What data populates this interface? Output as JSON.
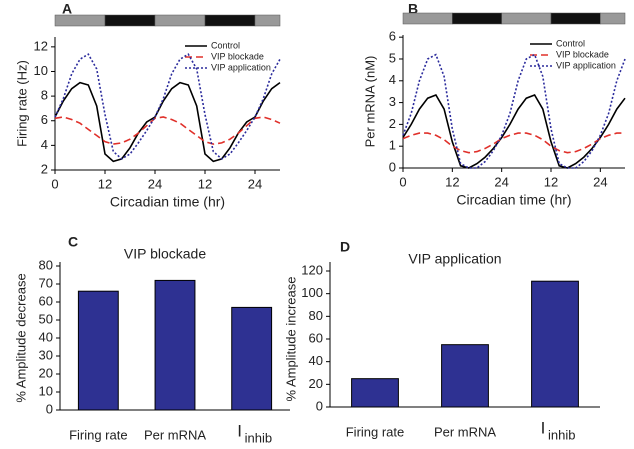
{
  "chart_data": [
    {
      "type": "line",
      "panel": "A",
      "xlabel": "Circadian time (hr)",
      "ylabel": "Firing rate (Hz)",
      "x": [
        0,
        2,
        4,
        6,
        8,
        10,
        12,
        14,
        16,
        18,
        20,
        22,
        24,
        26,
        28,
        30,
        32,
        34,
        36,
        38,
        40,
        42,
        44,
        46,
        48,
        50,
        52,
        54
      ],
      "xlim": [
        0,
        54
      ],
      "xticks": [
        0,
        12,
        24,
        {
          "value": 36,
          "label": "12"
        },
        {
          "value": 48,
          "label": "24"
        }
      ],
      "ylim": [
        2,
        12.8
      ],
      "yticks": [
        2,
        4,
        6,
        8,
        10,
        12
      ],
      "legend": "upper right",
      "series": [
        {
          "name": "Control",
          "color": "#000000",
          "line_style": "solid",
          "values": [
            6.3,
            7.6,
            8.6,
            9.1,
            8.9,
            7.2,
            3.3,
            2.7,
            2.9,
            3.8,
            5.0,
            5.9,
            6.3,
            7.6,
            8.6,
            9.1,
            8.9,
            7.2,
            3.3,
            2.7,
            2.9,
            3.8,
            5.0,
            5.9,
            6.3,
            7.6,
            8.6,
            9.1
          ]
        },
        {
          "name": "VIP blockade",
          "color": "#e0302a",
          "line_style": "dashed",
          "values": [
            6.2,
            6.3,
            6.1,
            5.8,
            5.3,
            4.8,
            4.3,
            4.1,
            4.2,
            4.5,
            5.0,
            5.6,
            6.2,
            6.3,
            6.1,
            5.8,
            5.3,
            4.8,
            4.3,
            4.1,
            4.2,
            4.5,
            5.0,
            5.6,
            6.2,
            6.3,
            6.1,
            5.8
          ]
        },
        {
          "name": "VIP application",
          "color": "#2b2b9c",
          "line_style": "dotted",
          "values": [
            6.3,
            7.8,
            9.8,
            11.0,
            11.4,
            10.2,
            6.5,
            3.5,
            2.9,
            3.3,
            4.2,
            5.2,
            6.3,
            7.8,
            9.8,
            11.0,
            11.4,
            10.2,
            6.5,
            3.5,
            2.9,
            3.3,
            4.2,
            5.2,
            6.3,
            7.8,
            9.8,
            11.0
          ]
        }
      ]
    },
    {
      "type": "line",
      "panel": "B",
      "xlabel": "Circadian time (hr)",
      "ylabel": "Per mRNA (nM)",
      "x": [
        0,
        2,
        4,
        6,
        8,
        10,
        12,
        14,
        16,
        18,
        20,
        22,
        24,
        26,
        28,
        30,
        32,
        34,
        36,
        38,
        40,
        42,
        44,
        46,
        48,
        50,
        52,
        54
      ],
      "xlim": [
        0,
        54
      ],
      "xticks": [
        0,
        12,
        24,
        {
          "value": 36,
          "label": "12"
        },
        {
          "value": 48,
          "label": "24"
        }
      ],
      "ylim": [
        0,
        6.1
      ],
      "yticks": [
        0,
        1,
        2,
        3,
        4,
        5,
        6
      ],
      "legend": "upper right",
      "series": [
        {
          "name": "Control",
          "color": "#000000",
          "line_style": "solid",
          "values": [
            1.4,
            2.0,
            2.7,
            3.2,
            3.35,
            2.7,
            1.2,
            0.1,
            0,
            0.2,
            0.5,
            0.9,
            1.4,
            2.0,
            2.7,
            3.2,
            3.35,
            2.7,
            1.2,
            0.1,
            0,
            0.2,
            0.5,
            0.9,
            1.4,
            2.0,
            2.7,
            3.2
          ]
        },
        {
          "name": "VIP blockade",
          "color": "#e0302a",
          "line_style": "dashed",
          "values": [
            1.35,
            1.5,
            1.6,
            1.6,
            1.5,
            1.3,
            1.0,
            0.8,
            0.7,
            0.75,
            0.9,
            1.1,
            1.35,
            1.5,
            1.6,
            1.6,
            1.5,
            1.3,
            1.0,
            0.8,
            0.7,
            0.75,
            0.9,
            1.1,
            1.35,
            1.5,
            1.6,
            1.6
          ]
        },
        {
          "name": "VIP application",
          "color": "#2b2b9c",
          "line_style": "dotted",
          "values": [
            1.5,
            2.5,
            4.0,
            5.0,
            5.2,
            4.2,
            1.8,
            0.2,
            0,
            0,
            0.3,
            0.8,
            1.5,
            2.5,
            4.0,
            5.0,
            5.2,
            4.2,
            1.8,
            0.2,
            0,
            0,
            0.3,
            0.8,
            1.5,
            2.5,
            4.0,
            5.0
          ]
        }
      ]
    },
    {
      "type": "bar",
      "panel": "C",
      "title": "VIP blockade",
      "ylabel": "% Amplitude decrease",
      "categories": [
        "Firing rate",
        "Per mRNA",
        "I"
      ],
      "subscripts": {
        "2": "inhib"
      },
      "values": [
        66,
        72,
        57
      ],
      "color": "#2e3192",
      "ylim": [
        0,
        80
      ],
      "yticks": [
        0,
        10,
        20,
        30,
        40,
        50,
        60,
        70,
        80
      ]
    },
    {
      "type": "bar",
      "panel": "D",
      "title": "VIP application",
      "ylabel": "% Amplitude increase",
      "categories": [
        "Firing rate",
        "Per mRNA",
        "I"
      ],
      "subscripts": {
        "2": "inhib"
      },
      "values": [
        25,
        55,
        111
      ],
      "color": "#2e3192",
      "ylim": [
        0,
        120
      ],
      "yticks": [
        0,
        20,
        40,
        60,
        80,
        100,
        120
      ]
    }
  ]
}
